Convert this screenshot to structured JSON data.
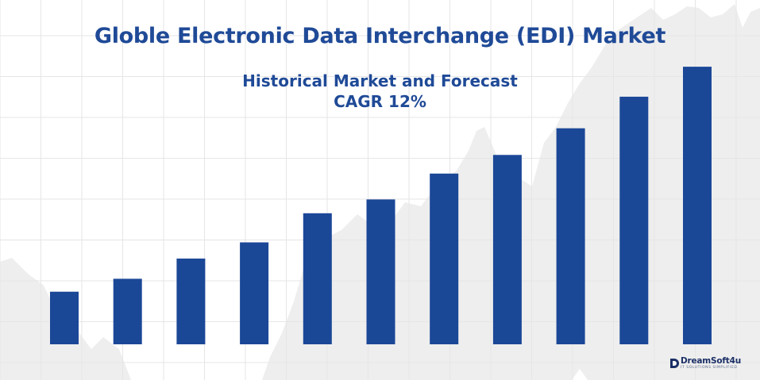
{
  "title": "Globle Electronic Data Interchange (EDI) Market",
  "subtitle": {
    "line1": "Historical Market and Forecast",
    "line2": "CAGR 12%"
  },
  "logo": {
    "name": "DreamSoft4u",
    "tagline": "IT SOLUTIONS SIMPLIFIED",
    "icon": "dreamsoft-logo-icon"
  },
  "colors": {
    "bar": "#1b4797",
    "title": "#1f4a97",
    "grid": "#e6e6e6",
    "background_area": "#eeeeee"
  },
  "chart_data": {
    "type": "bar",
    "categories": [
      "",
      "",
      "",
      "",
      "",
      "",
      "",
      "",
      "",
      "",
      ""
    ],
    "values": [
      65,
      81,
      106,
      126,
      162,
      179,
      211,
      234,
      267,
      306,
      343
    ],
    "title": "Globle Electronic Data Interchange (EDI) Market",
    "subtitle": "Historical Market and Forecast CAGR 12%",
    "xlabel": "",
    "ylabel": "",
    "ylim": [
      0,
      350
    ],
    "grid": true,
    "legend": "none"
  }
}
